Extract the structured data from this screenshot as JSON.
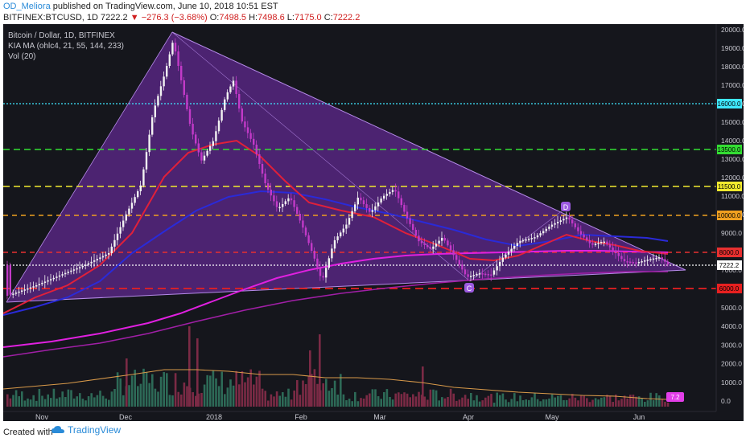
{
  "header": {
    "author": "OD_Meliora",
    "published_text": "published on TradingView.com, June 10, 2018 10:51 EST",
    "symbol": "BITFINEX:BTCUSD, 1D",
    "last": "7222.2",
    "change_arrow": "▼",
    "change": "−276.3 (−3.68%)",
    "o_label": "O:",
    "o": "7498.5",
    "h_label": "H:",
    "h": "7498.6",
    "l_label": "L:",
    "l": "7175.0",
    "c_label": "C:",
    "c": "7222.2"
  },
  "legend": {
    "title": "Bitcoin / Dollar, 1D, BITFINEX",
    "ma": "KIA MA (ohlc4, 21, 55, 144, 233)",
    "vol": "Vol (20)"
  },
  "price_axis": [
    "20000.0",
    "19000.0",
    "18000.0",
    "17000.0",
    "16000.0",
    "15000.0",
    "14000.0",
    "13000.0",
    "12000.0",
    "11000.0",
    "10000.0",
    "9000.0",
    "8000.0",
    "7000.0",
    "6000.0"
  ],
  "volume_axis": [
    "5000.0",
    "4000.0",
    "3000.0",
    "2000.0",
    "1000.0",
    "0.0"
  ],
  "time_axis": [
    "Nov",
    "Dec",
    "2018",
    "Feb",
    "Mar",
    "Apr",
    "May",
    "Jun"
  ],
  "levels": [
    {
      "label": "16000.0",
      "color": "#3fe8ff"
    },
    {
      "label": "13500.0",
      "color": "#33dd33"
    },
    {
      "label": "11500.0",
      "color": "#f2ea2e"
    },
    {
      "label": "10000.0",
      "color": "#f0a020"
    },
    {
      "label": "8000.0",
      "color": "#e83030"
    },
    {
      "label": "7222.2",
      "color": "#ffffff"
    },
    {
      "label": "6000.0",
      "color": "#e82020"
    }
  ],
  "markers": {
    "c": "C",
    "d": "D"
  },
  "vol_badge": "7.2",
  "footer": {
    "created": "Created with",
    "brand": "TradingView"
  },
  "colors": {
    "bg": "#15161c",
    "triangle": "#7a2fb8",
    "candle": "#e23ee8",
    "ma_red": "#e0203a",
    "ma_blue": "#2a2ad8",
    "ma_magenta": "#e020e0"
  }
}
